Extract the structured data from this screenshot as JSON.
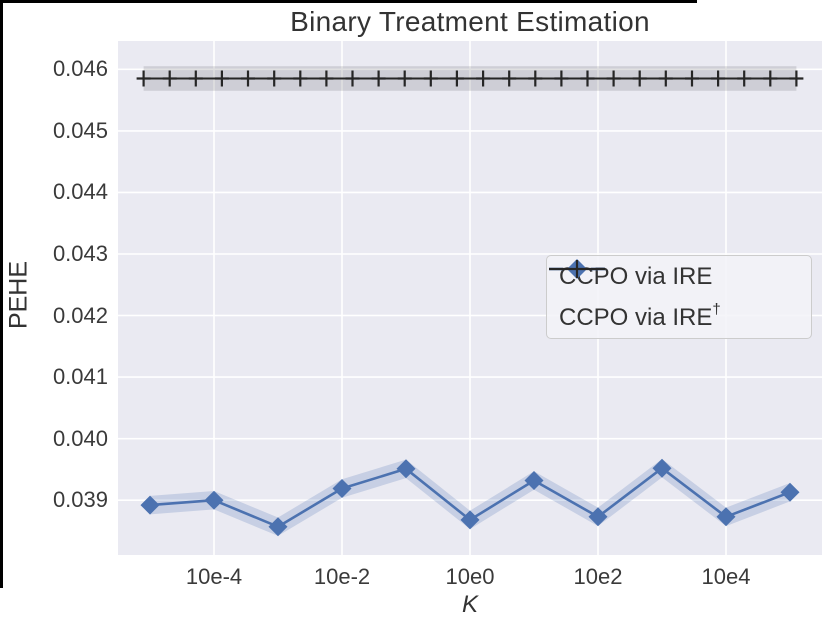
{
  "chart_data": {
    "type": "line",
    "title": "Binary Treatment Estimation",
    "xlabel": "K",
    "ylabel": "PEHE",
    "grid": true,
    "x_scale": "log-spaced categories labeled as 10eN",
    "xlim_exponents": [
      -5.5,
      5.5
    ],
    "ylim": [
      0.03811,
      0.04646
    ],
    "x_ticks": {
      "exponents": [
        -4,
        -2,
        0,
        2,
        4
      ],
      "labels": [
        "10e-4",
        "10e-2",
        "10e0",
        "10e2",
        "10e4"
      ]
    },
    "y_ticks": {
      "values": [
        0.039,
        0.04,
        0.041,
        0.042,
        0.043,
        0.044,
        0.045,
        0.046
      ],
      "labels": [
        "0.039",
        "0.040",
        "0.041",
        "0.042",
        "0.043",
        "0.044",
        "0.045",
        "0.046"
      ]
    },
    "series": [
      {
        "name": "CCPO via IRE",
        "color": "#4C72B0",
        "marker": "diamond",
        "line_style": "solid",
        "x_exponents": [
          -5,
          -4,
          -3,
          -2,
          -1,
          0,
          1,
          2,
          3,
          4,
          5
        ],
        "values": [
          0.03892,
          0.039,
          0.03857,
          0.03919,
          0.03951,
          0.03868,
          0.03932,
          0.03873,
          0.03952,
          0.03873,
          0.03913
        ],
        "band_halfwidth": 0.00015,
        "band_color": "rgba(76,114,176,0.22)"
      },
      {
        "name": "CCPO via IRE",
        "dagger": "†",
        "color": "#262626",
        "marker": "plus",
        "line_style": "solid",
        "constant_value": 0.04585,
        "n_markers": 26,
        "x_span_exponents": [
          -5.1,
          5.1
        ],
        "band_halfwidth": 0.0002,
        "band_color": "rgba(60,60,70,0.16)"
      }
    ],
    "legend_position": "center-right"
  },
  "colors": {
    "plot_background": "#eaeaf2",
    "gridline": "#ffffff",
    "text": "#333333",
    "accent_blue": "#4C72B0",
    "line_black": "#262626",
    "legend_border": "#cccccc"
  }
}
